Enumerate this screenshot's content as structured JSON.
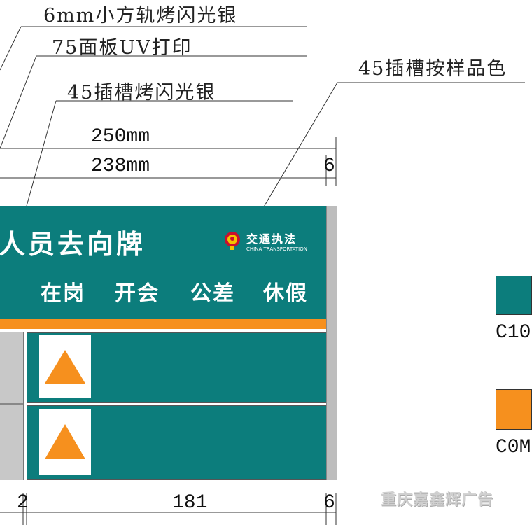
{
  "callouts": {
    "rail": "6mm小方轨烤闪光银",
    "panel": "75面板UV打印",
    "slot": "45插槽烤闪光银",
    "slot_color": "45插槽按样品色"
  },
  "dimensions": {
    "total_width": "250mm",
    "inner_width": "238mm",
    "edge_right_top": "6",
    "gap_bottom": "2",
    "slot_width": "181",
    "edge_right_bottom": "6"
  },
  "sign": {
    "title": "人员去向牌",
    "statuses": [
      "在岗",
      "开会",
      "公差",
      "休假"
    ],
    "logo_cn": "交通执法",
    "logo_en": "CHINA TRANSPORTATION"
  },
  "swatches": [
    {
      "label": "C10",
      "color": "#0c7d7c"
    },
    {
      "label": "C0M",
      "color": "#f6901e"
    }
  ],
  "colors": {
    "teal": "#0c7d7c",
    "orange": "#f6901e",
    "silver": "#c8c8c8",
    "white": "#ffffff"
  },
  "watermark": "重庆嘉鑫辉广告"
}
